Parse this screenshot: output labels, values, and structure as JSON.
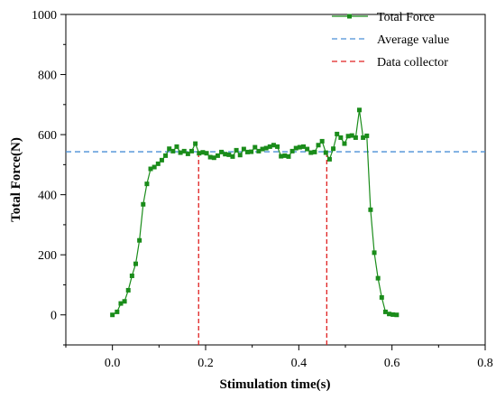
{
  "chart_data": {
    "type": "line",
    "xlabel": "Stimulation time(s)",
    "ylabel": "Total Force(N)",
    "xlim": [
      -0.1,
      0.8
    ],
    "ylim": [
      -100,
      1000
    ],
    "x_ticks": [
      0.0,
      0.2,
      0.4,
      0.6,
      0.8
    ],
    "x_tick_labels": [
      "0.0",
      "0.2",
      "0.4",
      "0.6",
      "0.8"
    ],
    "y_ticks": [
      0,
      200,
      400,
      600,
      800,
      1000
    ],
    "y_tick_labels": [
      "0",
      "200",
      "400",
      "600",
      "800",
      "1000"
    ],
    "legend_position": "top-right",
    "legend": [
      {
        "label": "Total Force",
        "style": "line-square-marker",
        "color": "#1a8c1a"
      },
      {
        "label": "Average value",
        "style": "dashed",
        "color": "#4a8fd6"
      },
      {
        "label": "Data collector",
        "style": "dashed",
        "color": "#e02020"
      }
    ],
    "average_value": 543,
    "data_collector_x": [
      0.185,
      0.46
    ],
    "series": [
      {
        "name": "Total Force",
        "color": "#1a8c1a",
        "points": [
          [
            0.0,
            0
          ],
          [
            0.01,
            10
          ],
          [
            0.018,
            38
          ],
          [
            0.026,
            45
          ],
          [
            0.034,
            82
          ],
          [
            0.042,
            130
          ],
          [
            0.05,
            170
          ],
          [
            0.058,
            248
          ],
          [
            0.066,
            368
          ],
          [
            0.074,
            436
          ],
          [
            0.082,
            486
          ],
          [
            0.09,
            492
          ],
          [
            0.098,
            503
          ],
          [
            0.106,
            515
          ],
          [
            0.114,
            530
          ],
          [
            0.122,
            553
          ],
          [
            0.13,
            545
          ],
          [
            0.138,
            560
          ],
          [
            0.146,
            540
          ],
          [
            0.154,
            545
          ],
          [
            0.162,
            536
          ],
          [
            0.17,
            545
          ],
          [
            0.178,
            570
          ],
          [
            0.186,
            538
          ],
          [
            0.194,
            541
          ],
          [
            0.202,
            538
          ],
          [
            0.21,
            525
          ],
          [
            0.218,
            523
          ],
          [
            0.226,
            530
          ],
          [
            0.234,
            542
          ],
          [
            0.242,
            535
          ],
          [
            0.25,
            533
          ],
          [
            0.258,
            527
          ],
          [
            0.266,
            548
          ],
          [
            0.274,
            532
          ],
          [
            0.282,
            552
          ],
          [
            0.29,
            542
          ],
          [
            0.298,
            543
          ],
          [
            0.306,
            558
          ],
          [
            0.314,
            545
          ],
          [
            0.322,
            552
          ],
          [
            0.33,
            555
          ],
          [
            0.338,
            560
          ],
          [
            0.346,
            565
          ],
          [
            0.354,
            560
          ],
          [
            0.362,
            528
          ],
          [
            0.37,
            530
          ],
          [
            0.378,
            527
          ],
          [
            0.386,
            545
          ],
          [
            0.394,
            555
          ],
          [
            0.402,
            558
          ],
          [
            0.41,
            560
          ],
          [
            0.418,
            552
          ],
          [
            0.426,
            540
          ],
          [
            0.434,
            542
          ],
          [
            0.442,
            565
          ],
          [
            0.45,
            578
          ],
          [
            0.458,
            540
          ],
          [
            0.466,
            518
          ],
          [
            0.474,
            553
          ],
          [
            0.482,
            602
          ],
          [
            0.49,
            590
          ],
          [
            0.498,
            570
          ],
          [
            0.506,
            595
          ],
          [
            0.514,
            597
          ],
          [
            0.522,
            590
          ],
          [
            0.53,
            682
          ],
          [
            0.538,
            590
          ],
          [
            0.546,
            596
          ],
          [
            0.554,
            350
          ],
          [
            0.562,
            207
          ],
          [
            0.57,
            122
          ],
          [
            0.578,
            58
          ],
          [
            0.586,
            10
          ],
          [
            0.594,
            3
          ],
          [
            0.602,
            1
          ],
          [
            0.61,
            0
          ]
        ]
      }
    ]
  }
}
